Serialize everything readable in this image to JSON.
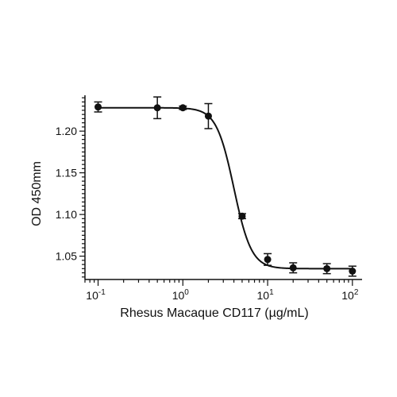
{
  "chart_data": {
    "type": "scatter",
    "xlabel": "Rhesus Macaque CD117 (µg/mL)",
    "ylabel": "OD 450mm",
    "x_scale": "log",
    "xlim": [
      0.07,
      130
    ],
    "ylim": [
      1.022,
      1.243
    ],
    "y_ticks": [
      1.05,
      1.1,
      1.15,
      1.2
    ],
    "y_tick_labels": [
      "1.05",
      "1.10",
      "1.15",
      "1.20"
    ],
    "x_major_ticks": [
      0.1,
      1,
      10,
      100
    ],
    "x_tick_labels": [
      {
        "base": "10",
        "exp": "-1"
      },
      {
        "base": "10",
        "exp": "0"
      },
      {
        "base": "10",
        "exp": "1"
      },
      {
        "base": "10",
        "exp": "2"
      }
    ],
    "points": [
      {
        "x": 0.1,
        "y": 1.229,
        "err": 0.006
      },
      {
        "x": 0.5,
        "y": 1.228,
        "err": 0.013
      },
      {
        "x": 1,
        "y": 1.228,
        "err": 0.002
      },
      {
        "x": 2,
        "y": 1.218,
        "err": 0.015
      },
      {
        "x": 5,
        "y": 1.098,
        "err": 0.003
      },
      {
        "x": 10,
        "y": 1.046,
        "err": 0.007
      },
      {
        "x": 20,
        "y": 1.036,
        "err": 0.006
      },
      {
        "x": 50,
        "y": 1.035,
        "err": 0.006
      },
      {
        "x": 100,
        "y": 1.032,
        "err": 0.006
      }
    ],
    "fit": {
      "model": "4PL",
      "top": 1.228,
      "bottom": 1.035,
      "ec50": 4.0,
      "hill": 4.2
    },
    "grid": false,
    "legend": "none"
  }
}
